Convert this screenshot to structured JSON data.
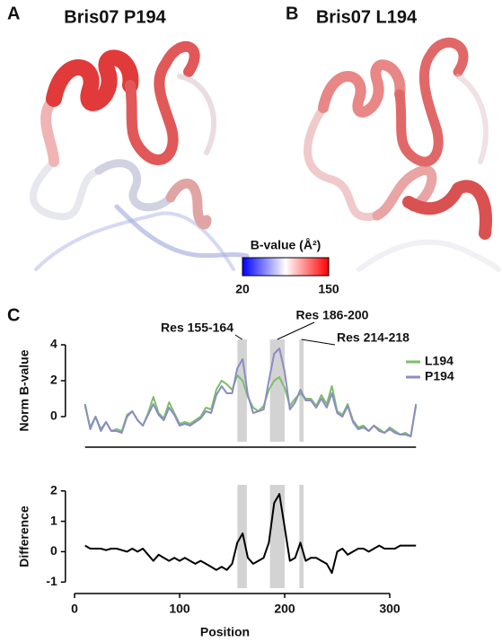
{
  "panels": [
    {
      "letter": "A",
      "title": "Bris07 P194"
    },
    {
      "letter": "B",
      "title": "Bris07 L194"
    },
    {
      "letter": "C"
    }
  ],
  "colorbar": {
    "title": "B-value (Å²)",
    "ticks": [
      20,
      150
    ],
    "colors": [
      "#0000ff",
      "#ffffff",
      "#ff0000"
    ]
  },
  "chart_data": [
    {
      "type": "line",
      "ylabel": "Norm B-value",
      "x": [
        10,
        15,
        20,
        25,
        30,
        35,
        40,
        45,
        50,
        55,
        60,
        65,
        70,
        75,
        80,
        85,
        90,
        95,
        100,
        105,
        110,
        115,
        120,
        125,
        130,
        135,
        140,
        145,
        150,
        155,
        160,
        165,
        170,
        175,
        180,
        185,
        190,
        195,
        200,
        205,
        210,
        215,
        220,
        225,
        230,
        235,
        240,
        245,
        250,
        255,
        260,
        265,
        270,
        275,
        280,
        285,
        290,
        295,
        300,
        305,
        310,
        315,
        320,
        325
      ],
      "series": [
        {
          "name": "L194",
          "color": "#7cbf6a",
          "values": [
            0.6,
            -0.6,
            0.0,
            -0.7,
            -0.3,
            -0.8,
            -0.7,
            -0.8,
            0.1,
            0.3,
            -0.2,
            -0.5,
            0.2,
            1.1,
            0.2,
            -0.1,
            0.8,
            0.2,
            -0.4,
            -0.3,
            -0.4,
            -0.2,
            0.0,
            0.5,
            0.4,
            1.5,
            2.0,
            1.8,
            1.5,
            2.3,
            2.0,
            1.1,
            0.5,
            0.3,
            0.6,
            1.5,
            2.0,
            2.2,
            1.6,
            0.6,
            1.0,
            1.3,
            1.0,
            1.0,
            0.6,
            1.2,
            0.7,
            1.7,
            0.3,
            0.1,
            0.7,
            -0.2,
            -0.6,
            -0.5,
            -0.8,
            -0.5,
            -0.7,
            -0.9,
            -0.6,
            -0.8,
            -1.0,
            -0.9,
            -1.1,
            0.6
          ]
        },
        {
          "name": "P194",
          "color": "#8c8cc4",
          "values": [
            0.7,
            -0.7,
            0.0,
            -0.8,
            -0.3,
            -0.8,
            -0.8,
            -0.9,
            0.0,
            0.3,
            -0.2,
            -0.5,
            0.1,
            0.7,
            0.1,
            -0.2,
            0.5,
            0.1,
            -0.5,
            -0.4,
            -0.5,
            -0.3,
            -0.1,
            0.3,
            0.2,
            1.2,
            1.7,
            1.3,
            1.3,
            2.7,
            3.2,
            1.2,
            0.2,
            0.3,
            0.4,
            2.0,
            3.5,
            3.8,
            2.5,
            0.4,
            0.8,
            1.5,
            0.9,
            0.9,
            0.5,
            1.0,
            0.5,
            1.3,
            0.2,
            0.0,
            0.6,
            -0.3,
            -0.7,
            -0.6,
            -0.8,
            -0.5,
            -0.8,
            -0.9,
            -0.7,
            -0.9,
            -1.0,
            -1.0,
            -1.1,
            0.7
          ]
        }
      ],
      "highlights": [
        {
          "label": "Res 155-164",
          "start": 155,
          "end": 164
        },
        {
          "label": "Res 186-200",
          "start": 186,
          "end": 200
        },
        {
          "label": "Res 214-218",
          "start": 214,
          "end": 218
        }
      ],
      "xlim": [
        -7,
        340
      ],
      "ylim": [
        -1.4,
        4.3
      ],
      "yticks": [
        0,
        2,
        4
      ],
      "legend": "upper right"
    },
    {
      "type": "line",
      "ylabel": "Difference",
      "xlabel": "Position",
      "x": [
        10,
        15,
        20,
        25,
        30,
        35,
        40,
        45,
        50,
        55,
        60,
        65,
        70,
        75,
        80,
        85,
        90,
        95,
        100,
        105,
        110,
        115,
        120,
        125,
        130,
        135,
        140,
        145,
        150,
        155,
        160,
        165,
        170,
        175,
        180,
        185,
        190,
        195,
        200,
        205,
        210,
        215,
        220,
        225,
        230,
        235,
        240,
        245,
        250,
        255,
        260,
        265,
        270,
        275,
        280,
        285,
        290,
        295,
        300,
        305,
        310,
        315,
        320,
        325
      ],
      "series": [
        {
          "color": "#000000",
          "values": [
            0.2,
            0.1,
            0.1,
            0.1,
            0.05,
            0.1,
            0.1,
            0.05,
            0.0,
            0.1,
            0.0,
            0.1,
            -0.1,
            -0.3,
            -0.1,
            -0.2,
            -0.3,
            -0.2,
            -0.3,
            -0.2,
            -0.3,
            -0.4,
            -0.3,
            -0.4,
            -0.5,
            -0.6,
            -0.5,
            -0.6,
            -0.4,
            0.3,
            0.6,
            -0.2,
            -0.4,
            -0.3,
            -0.2,
            0.3,
            1.6,
            1.9,
            0.8,
            -0.3,
            -0.2,
            0.3,
            -0.3,
            -0.2,
            -0.2,
            -0.3,
            -0.4,
            -0.7,
            0.0,
            0.1,
            -0.1,
            0.0,
            0.1,
            0.1,
            0.0,
            0.1,
            0.2,
            0.1,
            0.1,
            0.1,
            0.2,
            0.2,
            0.2,
            0.2
          ]
        }
      ],
      "highlights": [
        {
          "start": 155,
          "end": 164
        },
        {
          "start": 186,
          "end": 200
        },
        {
          "start": 214,
          "end": 218
        }
      ],
      "xlim": [
        -7,
        340
      ],
      "ylim": [
        -1.2,
        2.2
      ],
      "xticks": [
        0,
        100,
        200,
        300
      ],
      "yticks": [
        -1,
        0,
        1,
        2
      ]
    }
  ]
}
